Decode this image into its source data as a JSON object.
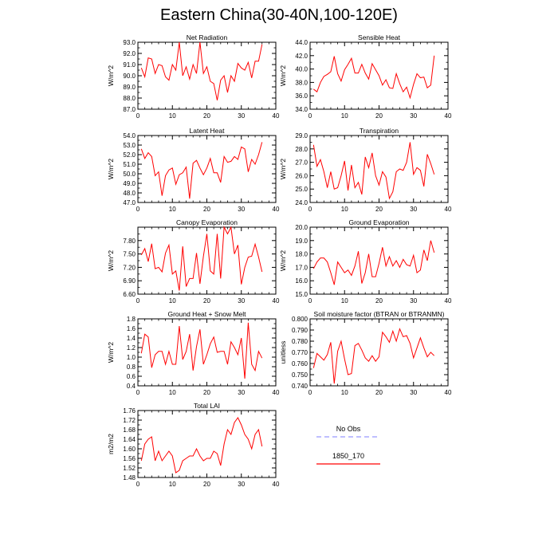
{
  "title": "Eastern China(30-40N,100-120E)",
  "legend": {
    "entries": [
      {
        "name": "No Obs",
        "color": "#9999ff",
        "dashed": true
      },
      {
        "name": "1850_170",
        "color": "#ff0000",
        "dashed": false
      }
    ]
  },
  "chart_data": [
    {
      "type": "line",
      "title": "Net Radiation",
      "ylabel": "W/m^2",
      "xlim": [
        0,
        40
      ],
      "ylim": [
        87.0,
        93.0
      ],
      "xticks": [
        "0",
        "10",
        "20",
        "30",
        "40"
      ],
      "yticks": [
        "87.0",
        "88.0",
        "89.0",
        "90.0",
        "91.0",
        "92.0",
        "93.0"
      ],
      "x": [
        1,
        2,
        3,
        4,
        5,
        6,
        7,
        8,
        9,
        10,
        11,
        12,
        13,
        14,
        15,
        16,
        17,
        18,
        19,
        20,
        21,
        22,
        23,
        24,
        25,
        26,
        27,
        28,
        29,
        30,
        31,
        32,
        33,
        34,
        35,
        36
      ],
      "values": [
        90.7,
        89.9,
        91.6,
        91.5,
        90.2,
        91.0,
        90.9,
        89.9,
        89.6,
        91.0,
        90.5,
        93.0,
        90.0,
        90.8,
        89.7,
        91.0,
        90.2,
        93.0,
        90.2,
        90.8,
        89.5,
        89.3,
        87.8,
        89.6,
        90.0,
        88.5,
        90.0,
        89.5,
        91.1,
        90.7,
        90.5,
        91.2,
        89.8,
        91.3,
        91.3,
        92.8
      ],
      "series": [
        {
          "name": "1850_170",
          "color": "#ff0000"
        }
      ]
    },
    {
      "type": "line",
      "title": "Sensible Heat",
      "ylabel": "W/m^2",
      "xlim": [
        0,
        40
      ],
      "ylim": [
        34.0,
        44.0
      ],
      "xticks": [
        "0",
        "10",
        "20",
        "30",
        "40"
      ],
      "yticks": [
        "34.0",
        "36.0",
        "38.0",
        "40.0",
        "42.0",
        "44.0"
      ],
      "x": [
        1,
        2,
        3,
        4,
        5,
        6,
        7,
        8,
        9,
        10,
        11,
        12,
        13,
        14,
        15,
        16,
        17,
        18,
        19,
        20,
        21,
        22,
        23,
        24,
        25,
        26,
        27,
        28,
        29,
        30,
        31,
        32,
        33,
        34,
        35,
        36
      ],
      "values": [
        37.0,
        36.6,
        38.0,
        38.9,
        39.2,
        39.6,
        41.9,
        39.3,
        38.2,
        39.9,
        40.7,
        41.6,
        39.4,
        39.4,
        40.7,
        39.4,
        38.5,
        40.8,
        39.9,
        39.0,
        37.6,
        38.4,
        37.2,
        37.1,
        39.3,
        37.8,
        36.6,
        37.3,
        35.7,
        37.7,
        39.3,
        38.7,
        38.8,
        37.2,
        37.6,
        42.0
      ],
      "series": [
        {
          "name": "1850_170",
          "color": "#ff0000"
        }
      ]
    },
    {
      "type": "line",
      "title": "Latent Heat",
      "ylabel": "W/m^2",
      "xlim": [
        0,
        40
      ],
      "ylim": [
        47.0,
        54.0
      ],
      "xticks": [
        "0",
        "10",
        "20",
        "30",
        "40"
      ],
      "yticks": [
        "47.0",
        "48.0",
        "49.0",
        "50.0",
        "51.0",
        "52.0",
        "53.0",
        "54.0"
      ],
      "x": [
        1,
        2,
        3,
        4,
        5,
        6,
        7,
        8,
        9,
        10,
        11,
        12,
        13,
        14,
        15,
        16,
        17,
        18,
        19,
        20,
        21,
        22,
        23,
        24,
        25,
        26,
        27,
        28,
        29,
        30,
        31,
        32,
        33,
        34,
        35,
        36
      ],
      "values": [
        52.6,
        51.6,
        52.2,
        51.8,
        49.8,
        50.2,
        47.7,
        49.8,
        50.4,
        50.6,
        48.9,
        49.9,
        50.1,
        50.7,
        47.4,
        51.1,
        51.4,
        50.6,
        49.9,
        50.6,
        51.6,
        50.1,
        50.1,
        49.1,
        51.8,
        51.2,
        51.3,
        51.8,
        51.5,
        52.8,
        52.6,
        50.2,
        51.5,
        51.0,
        52.0,
        53.3
      ],
      "series": [
        {
          "name": "1850_170",
          "color": "#ff0000"
        }
      ]
    },
    {
      "type": "line",
      "title": "Transpiration",
      "ylabel": "W/m^2",
      "xlim": [
        0,
        40
      ],
      "ylim": [
        24.0,
        29.0
      ],
      "xticks": [
        "0",
        "10",
        "20",
        "30",
        "40"
      ],
      "yticks": [
        "24.0",
        "25.0",
        "26.0",
        "27.0",
        "28.0",
        "29.0"
      ],
      "x": [
        1,
        2,
        3,
        4,
        5,
        6,
        7,
        8,
        9,
        10,
        11,
        12,
        13,
        14,
        15,
        16,
        17,
        18,
        19,
        20,
        21,
        22,
        23,
        24,
        25,
        26,
        27,
        28,
        29,
        30,
        31,
        32,
        33,
        34,
        35,
        36
      ],
      "values": [
        28.3,
        26.7,
        27.2,
        26.3,
        25.1,
        26.3,
        25.0,
        25.1,
        26.0,
        27.1,
        24.9,
        26.8,
        25.1,
        25.5,
        24.6,
        27.4,
        26.6,
        27.7,
        26.0,
        25.3,
        26.3,
        25.9,
        24.3,
        24.8,
        26.3,
        26.5,
        26.4,
        27.0,
        28.5,
        26.1,
        26.6,
        26.4,
        25.2,
        27.6,
        26.9,
        26.1
      ],
      "series": [
        {
          "name": "1850_170",
          "color": "#ff0000"
        }
      ]
    },
    {
      "type": "line",
      "title": "Canopy Evaporation",
      "ylabel": "W/m^2",
      "xlim": [
        0,
        40
      ],
      "ylim": [
        6.6,
        8.1
      ],
      "xticks": [
        "0",
        "10",
        "20",
        "30",
        "40"
      ],
      "yticks": [
        "6.60",
        "6.90",
        "7.20",
        "7.50",
        "7.80"
      ],
      "x": [
        1,
        2,
        3,
        4,
        5,
        6,
        7,
        8,
        9,
        10,
        11,
        12,
        13,
        14,
        15,
        16,
        17,
        18,
        19,
        20,
        21,
        22,
        23,
        24,
        25,
        26,
        27,
        28,
        29,
        30,
        31,
        32,
        33,
        34,
        35,
        36
      ],
      "values": [
        7.48,
        7.62,
        7.33,
        7.73,
        7.17,
        7.2,
        7.1,
        7.52,
        7.7,
        7.05,
        7.12,
        6.68,
        7.67,
        6.77,
        6.95,
        6.95,
        7.52,
        6.83,
        7.45,
        7.95,
        7.12,
        7.05,
        7.95,
        6.95,
        8.1,
        7.95,
        8.1,
        7.5,
        7.7,
        6.82,
        7.2,
        7.43,
        7.45,
        7.72,
        7.43,
        7.1
      ],
      "series": [
        {
          "name": "1850_170",
          "color": "#ff0000"
        }
      ]
    },
    {
      "type": "line",
      "title": "Ground Evaporation",
      "ylabel": "W/m^2",
      "xlim": [
        0,
        40
      ],
      "ylim": [
        15.0,
        20.0
      ],
      "xticks": [
        "0",
        "10",
        "20",
        "30",
        "40"
      ],
      "yticks": [
        "15.0",
        "16.0",
        "17.0",
        "18.0",
        "19.0",
        "20.0"
      ],
      "x": [
        1,
        2,
        3,
        4,
        5,
        6,
        7,
        8,
        9,
        10,
        11,
        12,
        13,
        14,
        15,
        16,
        17,
        18,
        19,
        20,
        21,
        22,
        23,
        24,
        25,
        26,
        27,
        28,
        29,
        30,
        31,
        32,
        33,
        34,
        35,
        36
      ],
      "values": [
        16.9,
        17.4,
        17.7,
        17.7,
        17.4,
        16.6,
        15.7,
        17.4,
        17.0,
        16.6,
        16.8,
        16.4,
        17.1,
        18.2,
        15.8,
        16.6,
        18.0,
        16.3,
        16.3,
        17.3,
        18.5,
        17.1,
        17.8,
        17.1,
        17.5,
        17.0,
        17.6,
        17.2,
        17.1,
        17.9,
        16.6,
        16.8,
        18.3,
        17.5,
        19.0,
        18.1
      ],
      "series": [
        {
          "name": "1850_170",
          "color": "#ff0000"
        }
      ]
    },
    {
      "type": "line",
      "title": "Ground Heat + Snow Melt",
      "ylabel": "W/m^2",
      "xlim": [
        0,
        40
      ],
      "ylim": [
        0.4,
        1.8
      ],
      "xticks": [
        "0",
        "10",
        "20",
        "30",
        "40"
      ],
      "yticks": [
        "0.4",
        "0.6",
        "0.8",
        "1.0",
        "1.2",
        "1.4",
        "1.6",
        "1.8"
      ],
      "x": [
        1,
        2,
        3,
        4,
        5,
        6,
        7,
        8,
        9,
        10,
        11,
        12,
        13,
        14,
        15,
        16,
        17,
        18,
        19,
        20,
        21,
        22,
        23,
        24,
        25,
        26,
        27,
        28,
        29,
        30,
        31,
        32,
        33,
        34,
        35,
        36
      ],
      "values": [
        1.08,
        1.48,
        1.42,
        0.78,
        1.05,
        1.12,
        1.12,
        0.85,
        1.12,
        0.85,
        0.85,
        1.65,
        0.95,
        1.12,
        1.48,
        0.72,
        1.22,
        1.58,
        0.85,
        1.05,
        1.28,
        1.42,
        1.1,
        1.12,
        1.12,
        0.85,
        1.32,
        1.2,
        1.05,
        1.4,
        0.55,
        1.72,
        0.85,
        0.72,
        1.12,
        0.98
      ],
      "series": [
        {
          "name": "1850_170",
          "color": "#ff0000"
        }
      ]
    },
    {
      "type": "line",
      "title": "Soil moisture factor (BTRAN or BTRANMN)",
      "ylabel": "unitless",
      "xlim": [
        0,
        40
      ],
      "ylim": [
        0.74,
        0.8
      ],
      "xticks": [
        "0",
        "10",
        "20",
        "30",
        "40"
      ],
      "yticks": [
        "0.740",
        "0.750",
        "0.760",
        "0.770",
        "0.780",
        "0.790",
        "0.800"
      ],
      "x": [
        1,
        2,
        3,
        4,
        5,
        6,
        7,
        8,
        9,
        10,
        11,
        12,
        13,
        14,
        15,
        16,
        17,
        18,
        19,
        20,
        21,
        22,
        23,
        24,
        25,
        26,
        27,
        28,
        29,
        30,
        31,
        32,
        33,
        34,
        35,
        36
      ],
      "values": [
        0.756,
        0.769,
        0.766,
        0.763,
        0.768,
        0.779,
        0.742,
        0.771,
        0.78,
        0.764,
        0.75,
        0.751,
        0.776,
        0.778,
        0.772,
        0.765,
        0.762,
        0.767,
        0.762,
        0.766,
        0.788,
        0.784,
        0.779,
        0.789,
        0.78,
        0.791,
        0.784,
        0.785,
        0.778,
        0.765,
        0.774,
        0.783,
        0.774,
        0.766,
        0.77,
        0.767
      ],
      "series": [
        {
          "name": "1850_170",
          "color": "#ff0000"
        }
      ]
    },
    {
      "type": "line",
      "title": "Total LAI",
      "ylabel": "m2/m2",
      "xlim": [
        0,
        40
      ],
      "ylim": [
        1.48,
        1.76
      ],
      "xticks": [
        "0",
        "10",
        "20",
        "30",
        "40"
      ],
      "yticks": [
        "1.48",
        "1.52",
        "1.56",
        "1.60",
        "1.64",
        "1.68",
        "1.72",
        "1.76"
      ],
      "x": [
        1,
        2,
        3,
        4,
        5,
        6,
        7,
        8,
        9,
        10,
        11,
        12,
        13,
        14,
        15,
        16,
        17,
        18,
        19,
        20,
        21,
        22,
        23,
        24,
        25,
        26,
        27,
        28,
        29,
        30,
        31,
        32,
        33,
        34,
        35,
        36
      ],
      "values": [
        1.55,
        1.62,
        1.64,
        1.65,
        1.55,
        1.59,
        1.55,
        1.57,
        1.59,
        1.57,
        1.5,
        1.51,
        1.55,
        1.56,
        1.57,
        1.57,
        1.6,
        1.57,
        1.55,
        1.56,
        1.56,
        1.59,
        1.58,
        1.53,
        1.62,
        1.68,
        1.66,
        1.71,
        1.73,
        1.7,
        1.66,
        1.64,
        1.6,
        1.66,
        1.68,
        1.61
      ],
      "series": [
        {
          "name": "1850_170",
          "color": "#ff0000"
        }
      ]
    }
  ]
}
